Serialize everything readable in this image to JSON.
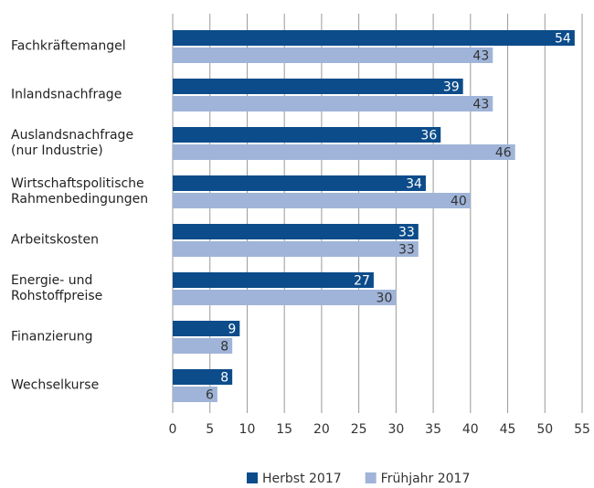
{
  "chart_data": {
    "type": "barh",
    "categories": [
      "Fachkräftemangel",
      "Inlandsnachfrage",
      "Auslandsnachfrage\n(nur Industrie)",
      "Wirtschaftspolitische\nRahmenbedingungen",
      "Arbeitskosten",
      "Energie- und\nRohstoffpreise",
      "Finanzierung",
      "Wechselkurse"
    ],
    "series": [
      {
        "name": "Herbst 2017",
        "color": "#0c4c8a",
        "values": [
          54,
          39,
          36,
          34,
          33,
          27,
          9,
          8
        ]
      },
      {
        "name": "Frühjahr 2017",
        "color": "#9fb4d8",
        "values": [
          43,
          43,
          46,
          40,
          33,
          30,
          8,
          6
        ]
      }
    ],
    "xlim": [
      0,
      55
    ],
    "xticks": [
      0,
      5,
      10,
      15,
      20,
      25,
      30,
      35,
      40,
      45,
      50,
      55
    ],
    "grid": true,
    "legend": "bottom"
  }
}
